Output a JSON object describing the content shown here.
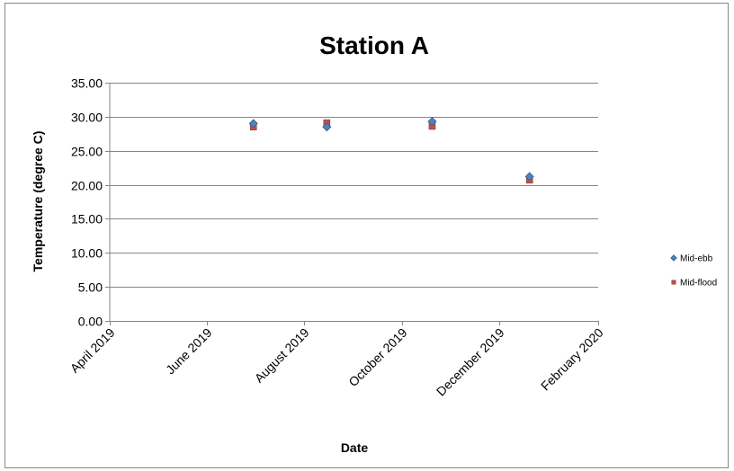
{
  "chart_data": {
    "type": "scatter",
    "title": "Station A",
    "xlabel": "Date",
    "ylabel": "Temperature (degree C)",
    "ylim": [
      0,
      35
    ],
    "yticks": [
      "0.00",
      "5.00",
      "10.00",
      "15.00",
      "20.00",
      "25.00",
      "30.00",
      "35.00"
    ],
    "xlim": [
      "2019-04-01",
      "2020-02-01"
    ],
    "xticks": [
      {
        "date": "2019-04-01",
        "label": "April 2019"
      },
      {
        "date": "2019-06-01",
        "label": "June 2019"
      },
      {
        "date": "2019-08-01",
        "label": "August 2019"
      },
      {
        "date": "2019-10-01",
        "label": "October 2019"
      },
      {
        "date": "2019-12-01",
        "label": "December 2019"
      },
      {
        "date": "2020-02-01",
        "label": "February 2020"
      }
    ],
    "grid": "horizontal",
    "legend_position": "right",
    "series": [
      {
        "name": "Mid-ebb",
        "marker": "diamond",
        "color": "#4F81BD",
        "points": [
          {
            "x": "2019-06-30",
            "y": 29.0
          },
          {
            "x": "2019-08-15",
            "y": 28.5
          },
          {
            "x": "2019-10-20",
            "y": 29.3
          },
          {
            "x": "2019-12-20",
            "y": 21.2
          }
        ]
      },
      {
        "name": "Mid-flood",
        "marker": "square",
        "color": "#C0504D",
        "points": [
          {
            "x": "2019-06-30",
            "y": 28.5
          },
          {
            "x": "2019-08-15",
            "y": 29.1
          },
          {
            "x": "2019-10-20",
            "y": 28.6
          },
          {
            "x": "2019-12-20",
            "y": 20.7
          }
        ]
      }
    ]
  }
}
